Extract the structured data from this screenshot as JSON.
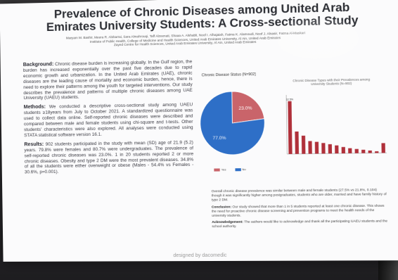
{
  "poster": {
    "title": "Prevalence of Chronic Diseases among United Arab Emirates University Students: A Cross-sectional Study",
    "authors": "Maryam M. Bashir, Meera R. Alsharrai, Sara Almahrouqi, Taff Alzeenati, Shaaa A. Alshabli, Noof I. Alhajaiah, Fatma K. Alamoudi, Noof J. Alnasir, Fatma Al-Maskari",
    "affiliation_1": "Institute of Public Health, College of Medicine and Health Sciences, United Arab Emirates University, Al Ain, United Arab Emirates",
    "affiliation_2": "Zayed Centre for Health Sciences, United Arab Emirates University, Al Ain, United Arab Emirates",
    "background_heading": "Background:",
    "background_text": "Chronic disease burden is increasing globally. In the Gulf region, the burden has increased exponentially over the past five decades due to rapid economic growth and urbanization. In the United Arab Emirates (UAE), chronic diseases are the leading cause of mortality and economic burden, hence, there is need to explore their patterns among the youth for targeted interventions. Our study describes the prevalence and patterns of multiple chronic diseases among UAE University (UAEU) students.",
    "methods_heading": "Methods:",
    "methods_text": "We conducted a descriptive cross-sectional study among UAEU students ≥18years from July to October 2021. A standardized questionnaire was used to collect data online. Self-reported chronic diseases were described and compared between male and female students using chi-square and t-tests. Other students' characteristics were also explored. All analyses were conducted using STATA statistical software version 16.1.",
    "results_heading": "Results:",
    "results_text": "902 students participated in the study with mean (SD) age of 21.9 (5.2) years. 79.8% were females and 80.7% were undergraduates. The prevalence of self-reported chronic diseases was 23.0%. 1 in 20 students reported 2 or more chronic diseases. Obesity and type 2 DM were the most prevalent diseases. 34.8% of all the students were either overweight or obese (Males - 54.4% vs Females - 30.6%, p=0.001).",
    "pie_title": "Chronic Disease Status (N=902)",
    "bars_title_line1": "Chronic Disease Types with their Prevalences among",
    "bars_title_line2": "University Students (N=902)",
    "overall_text": "Overall chronic disease prevalence was similar between male and female students (27.5% vs 21.8%, 0.104) though it was significantly higher among postgraduates, students who are older, married and have family history of type 2 DM.",
    "conclusion_heading": "Conclusion:",
    "conclusion_text": "Our study showed that more than 1 in 5 students reported at least one chronic disease. This shows the need for proactive chronic disease screening and prevention programs to meet the health needs of the university students.",
    "ack_heading": "Acknowledgement:",
    "ack_text": "The authors would like to acknowledge and thank all the participating UAEU students and the school authority.",
    "footer": "designed by dacomedic"
  },
  "colors": {
    "pie_yes": "#c9646a",
    "pie_no": "#2e6fc7",
    "bar": "#b0303a"
  },
  "chart_data": [
    {
      "type": "pie",
      "title": "Chronic Disease Status (N=902)",
      "categories": [
        "Yes",
        "No"
      ],
      "values": [
        23.0,
        77.0
      ],
      "labels": [
        "23.0%",
        "77.0%"
      ],
      "legend": "bottom"
    },
    {
      "type": "bar",
      "title": "Chronic Disease Types with their Prevalences among University Students (N=902)",
      "categories": [
        "",
        "",
        "",
        "",
        "",
        "",
        "",
        "",
        "",
        "",
        "",
        "",
        "",
        "",
        ""
      ],
      "values": [
        12.5,
        5.3,
        4.3,
        3.0,
        2.8,
        2.5,
        2.2,
        1.9,
        1.5,
        1.2,
        1.0,
        0.8,
        0.6,
        0.4,
        2.3
      ],
      "data_labels": [
        "12.5%",
        "",
        "",
        "",
        "",
        "",
        "",
        "",
        "",
        "",
        "",
        "",
        "",
        "",
        ""
      ],
      "ylim": [
        0,
        14
      ],
      "yticks": [
        "",
        "",
        "",
        "",
        "",
        "",
        "",
        ""
      ],
      "grid": false
    }
  ]
}
